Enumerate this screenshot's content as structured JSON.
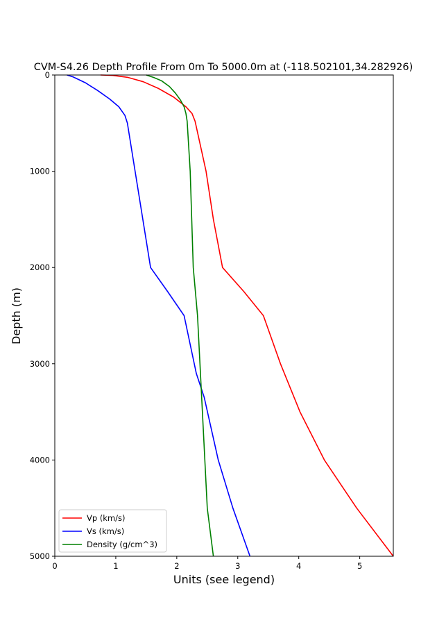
{
  "chart_data": {
    "type": "line",
    "title": "CVM-S4.26 Depth Profile From 0m To 5000.0m at (-118.502101,34.282926)",
    "xlabel": "Units (see legend)",
    "ylabel": "Depth (m)",
    "xlim": [
      0,
      5.55
    ],
    "ylim": [
      5000,
      0
    ],
    "y_inverted": true,
    "xticks": [
      "0",
      "1",
      "2",
      "3",
      "4",
      "5"
    ],
    "yticks": [
      "0",
      "1000",
      "2000",
      "3000",
      "4000",
      "5000"
    ],
    "grid": false,
    "legend_position": "lower-left",
    "series": [
      {
        "name": "Vp (km/s)",
        "color": "#ff0000",
        "points": [
          [
            0.75,
            0
          ],
          [
            0.95,
            4
          ],
          [
            1.2,
            25
          ],
          [
            1.45,
            70
          ],
          [
            1.7,
            140
          ],
          [
            1.95,
            230
          ],
          [
            2.15,
            330
          ],
          [
            2.25,
            400
          ],
          [
            2.3,
            480
          ],
          [
            2.48,
            1000
          ],
          [
            2.6,
            1500
          ],
          [
            2.75,
            2000
          ],
          [
            3.1,
            2250
          ],
          [
            3.42,
            2500
          ],
          [
            3.7,
            3000
          ],
          [
            4.02,
            3500
          ],
          [
            4.42,
            4000
          ],
          [
            4.95,
            4500
          ],
          [
            5.55,
            5000
          ]
        ]
      },
      {
        "name": "Vs (km/s)",
        "color": "#0000ff",
        "points": [
          [
            0.2,
            0
          ],
          [
            0.3,
            20
          ],
          [
            0.5,
            80
          ],
          [
            0.7,
            160
          ],
          [
            0.9,
            250
          ],
          [
            1.05,
            330
          ],
          [
            1.15,
            420
          ],
          [
            1.19,
            500
          ],
          [
            1.38,
            1250
          ],
          [
            1.57,
            2000
          ],
          [
            1.85,
            2250
          ],
          [
            2.12,
            2500
          ],
          [
            2.32,
            3100
          ],
          [
            2.45,
            3350
          ],
          [
            2.68,
            4000
          ],
          [
            2.92,
            4500
          ],
          [
            3.2,
            5000
          ]
        ]
      },
      {
        "name": "Density (g/cm^3)",
        "color": "#008000",
        "points": [
          [
            1.5,
            0
          ],
          [
            1.62,
            25
          ],
          [
            1.75,
            60
          ],
          [
            1.88,
            120
          ],
          [
            1.98,
            190
          ],
          [
            2.06,
            260
          ],
          [
            2.12,
            330
          ],
          [
            2.15,
            400
          ],
          [
            2.17,
            480
          ],
          [
            2.22,
            1000
          ],
          [
            2.27,
            2000
          ],
          [
            2.34,
            2500
          ],
          [
            2.38,
            3000
          ],
          [
            2.42,
            3500
          ],
          [
            2.46,
            4000
          ],
          [
            2.5,
            4500
          ],
          [
            2.6,
            5000
          ]
        ]
      }
    ]
  }
}
